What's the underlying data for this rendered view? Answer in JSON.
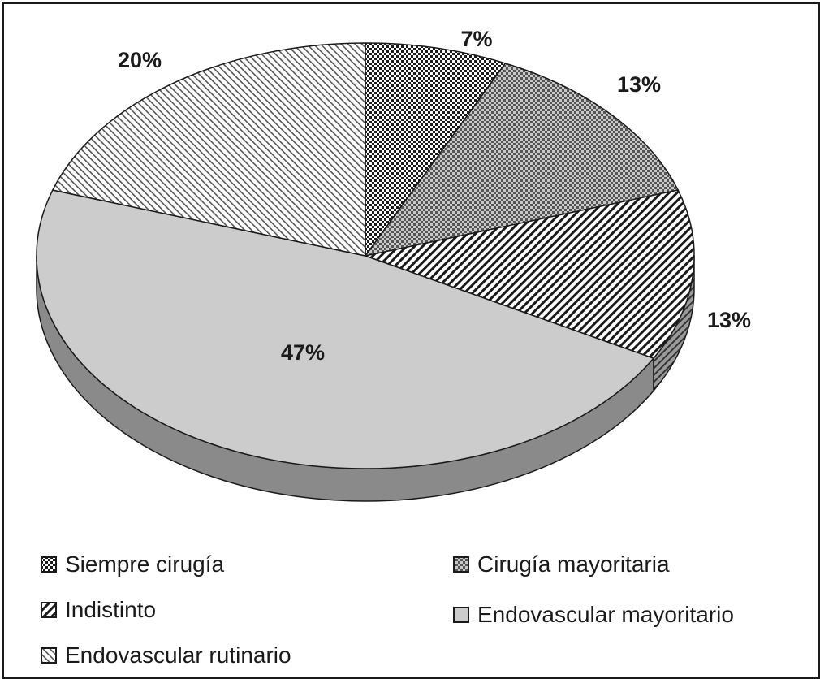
{
  "chart_data": {
    "type": "pie",
    "style": "3d",
    "slices": [
      {
        "label": "Siempre cirugía",
        "value": 7,
        "display": "7%",
        "pattern": "checker-fine"
      },
      {
        "label": "Cirugía mayoritaria",
        "value": 13,
        "display": "13%",
        "pattern": "checker-grey"
      },
      {
        "label": "Indistinto",
        "value": 13,
        "display": "13%",
        "pattern": "diagonal-dense"
      },
      {
        "label": "Endovascular mayoritario",
        "value": 47,
        "display": "47%",
        "pattern": "solid-light-grey"
      },
      {
        "label": "Endovascular rutinario",
        "value": 20,
        "display": "20%",
        "pattern": "diagonal-light"
      }
    ],
    "legend_position": "bottom",
    "colors": {
      "outline": "#1a1a1a",
      "light_grey": "#cccccc",
      "side_grey": "#8a8a8a"
    }
  }
}
